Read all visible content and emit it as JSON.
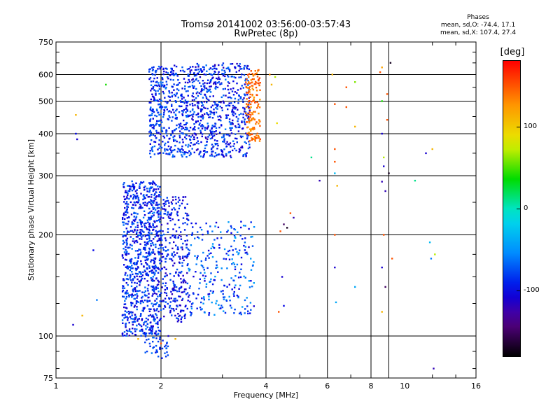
{
  "header": {
    "title": "Tromsø 20141002 03:56:00-03:57:43",
    "subtitle": "RwPretec (8p)"
  },
  "phases": {
    "title": "Phases",
    "o_line": "mean, sd,O: -74.4, 17.1",
    "x_line": "mean, sd,X: 107.4, 27.4"
  },
  "colorbar": {
    "unit": "[deg]",
    "ticks": [
      {
        "label": "100",
        "value": 100
      },
      {
        "label": "0",
        "value": 0
      },
      {
        "label": "-100",
        "value": -100
      }
    ],
    "range": [
      -180,
      180
    ]
  },
  "chart_data": {
    "type": "scatter",
    "xlabel": "Frequency [MHz]",
    "ylabel": "Stationary phase Virtual Height [km]",
    "xscale": "log",
    "yscale": "log",
    "xlim": [
      1,
      16
    ],
    "ylim": [
      75,
      750
    ],
    "x_ticks": [
      1,
      2,
      4,
      6,
      8,
      10,
      16
    ],
    "y_ticks": [
      75,
      100,
      200,
      300,
      400,
      500,
      600,
      750
    ],
    "x_gridlines": [
      2,
      4,
      6,
      8,
      9
    ],
    "y_gridlines": [
      100,
      200,
      300,
      400,
      500,
      600
    ],
    "color_variable": "phase [deg]",
    "clusters": [
      {
        "x": [
          1.55,
          2.0
        ],
        "y": [
          100,
          290
        ],
        "phase": [
          -115,
          -60
        ],
        "count": 900
      },
      {
        "x": [
          2.0,
          2.4
        ],
        "y": [
          110,
          260
        ],
        "phase": [
          -120,
          -70
        ],
        "count": 300
      },
      {
        "x": [
          2.4,
          3.7
        ],
        "y": [
          115,
          220
        ],
        "phase": [
          -110,
          -40
        ],
        "count": 260
      },
      {
        "x": [
          1.85,
          2.4
        ],
        "y": [
          340,
          640
        ],
        "phase": [
          -110,
          -60
        ],
        "count": 420
      },
      {
        "x": [
          2.4,
          3.6
        ],
        "y": [
          340,
          650
        ],
        "phase": [
          -120,
          -60
        ],
        "count": 620
      },
      {
        "x": [
          3.5,
          3.85
        ],
        "y": [
          380,
          620
        ],
        "phase": [
          120,
          160
        ],
        "count": 160
      },
      {
        "x": [
          1.8,
          2.1
        ],
        "y": [
          85,
          100
        ],
        "phase": [
          -100,
          -60
        ],
        "count": 40
      }
    ],
    "points": [
      {
        "x": 1.14,
        "y": 455,
        "phase": 110
      },
      {
        "x": 1.14,
        "y": 400,
        "phase": -100
      },
      {
        "x": 1.15,
        "y": 385,
        "phase": -110
      },
      {
        "x": 1.39,
        "y": 560,
        "phase": 40
      },
      {
        "x": 1.28,
        "y": 180,
        "phase": -100
      },
      {
        "x": 1.31,
        "y": 128,
        "phase": -60
      },
      {
        "x": 1.12,
        "y": 108,
        "phase": -110
      },
      {
        "x": 1.19,
        "y": 115,
        "phase": 110
      },
      {
        "x": 4.1,
        "y": 600,
        "phase": 130
      },
      {
        "x": 4.15,
        "y": 560,
        "phase": 110
      },
      {
        "x": 4.25,
        "y": 590,
        "phase": 70
      },
      {
        "x": 4.3,
        "y": 430,
        "phase": 90
      },
      {
        "x": 4.4,
        "y": 205,
        "phase": 150
      },
      {
        "x": 4.5,
        "y": 215,
        "phase": -150
      },
      {
        "x": 4.6,
        "y": 210,
        "phase": -170
      },
      {
        "x": 4.7,
        "y": 232,
        "phase": 150
      },
      {
        "x": 4.8,
        "y": 225,
        "phase": -120
      },
      {
        "x": 4.45,
        "y": 150,
        "phase": -110
      },
      {
        "x": 4.5,
        "y": 123,
        "phase": -100
      },
      {
        "x": 4.35,
        "y": 118,
        "phase": 150
      },
      {
        "x": 5.4,
        "y": 340,
        "phase": 10
      },
      {
        "x": 5.7,
        "y": 290,
        "phase": -120
      },
      {
        "x": 6.2,
        "y": 600,
        "phase": 110
      },
      {
        "x": 6.3,
        "y": 490,
        "phase": 150
      },
      {
        "x": 6.3,
        "y": 360,
        "phase": 150
      },
      {
        "x": 6.3,
        "y": 330,
        "phase": 150
      },
      {
        "x": 6.3,
        "y": 305,
        "phase": -30
      },
      {
        "x": 6.4,
        "y": 280,
        "phase": 110
      },
      {
        "x": 6.3,
        "y": 200,
        "phase": 150
      },
      {
        "x": 6.3,
        "y": 160,
        "phase": -110
      },
      {
        "x": 6.35,
        "y": 126,
        "phase": -40
      },
      {
        "x": 6.8,
        "y": 550,
        "phase": 150
      },
      {
        "x": 6.8,
        "y": 480,
        "phase": 150
      },
      {
        "x": 7.2,
        "y": 570,
        "phase": 60
      },
      {
        "x": 7.2,
        "y": 420,
        "phase": 110
      },
      {
        "x": 7.2,
        "y": 140,
        "phase": -40
      },
      {
        "x": 8.5,
        "y": 610,
        "phase": 150
      },
      {
        "x": 8.6,
        "y": 630,
        "phase": 120
      },
      {
        "x": 8.6,
        "y": 500,
        "phase": 40
      },
      {
        "x": 8.6,
        "y": 400,
        "phase": -110
      },
      {
        "x": 8.7,
        "y": 340,
        "phase": 70
      },
      {
        "x": 8.7,
        "y": 320,
        "phase": -110
      },
      {
        "x": 8.6,
        "y": 288,
        "phase": -120
      },
      {
        "x": 8.8,
        "y": 270,
        "phase": -120
      },
      {
        "x": 8.7,
        "y": 200,
        "phase": 150
      },
      {
        "x": 8.6,
        "y": 160,
        "phase": -110
      },
      {
        "x": 8.8,
        "y": 140,
        "phase": -150
      },
      {
        "x": 8.6,
        "y": 118,
        "phase": 110
      },
      {
        "x": 8.9,
        "y": 525,
        "phase": 150
      },
      {
        "x": 8.9,
        "y": 440,
        "phase": 150
      },
      {
        "x": 9.1,
        "y": 650,
        "phase": -170
      },
      {
        "x": 9.0,
        "y": 305,
        "phase": -170
      },
      {
        "x": 9.2,
        "y": 170,
        "phase": 150
      },
      {
        "x": 10.7,
        "y": 290,
        "phase": 10
      },
      {
        "x": 11.5,
        "y": 350,
        "phase": -110
      },
      {
        "x": 12.0,
        "y": 360,
        "phase": 110
      },
      {
        "x": 11.8,
        "y": 190,
        "phase": -30
      },
      {
        "x": 12.2,
        "y": 175,
        "phase": 70
      },
      {
        "x": 11.9,
        "y": 170,
        "phase": -60
      },
      {
        "x": 12.1,
        "y": 80,
        "phase": -120
      },
      {
        "x": 2.1,
        "y": 100,
        "phase": -110
      },
      {
        "x": 2.0,
        "y": 95,
        "phase": 150
      },
      {
        "x": 1.72,
        "y": 98,
        "phase": 110
      },
      {
        "x": 2.2,
        "y": 98,
        "phase": 110
      }
    ]
  }
}
